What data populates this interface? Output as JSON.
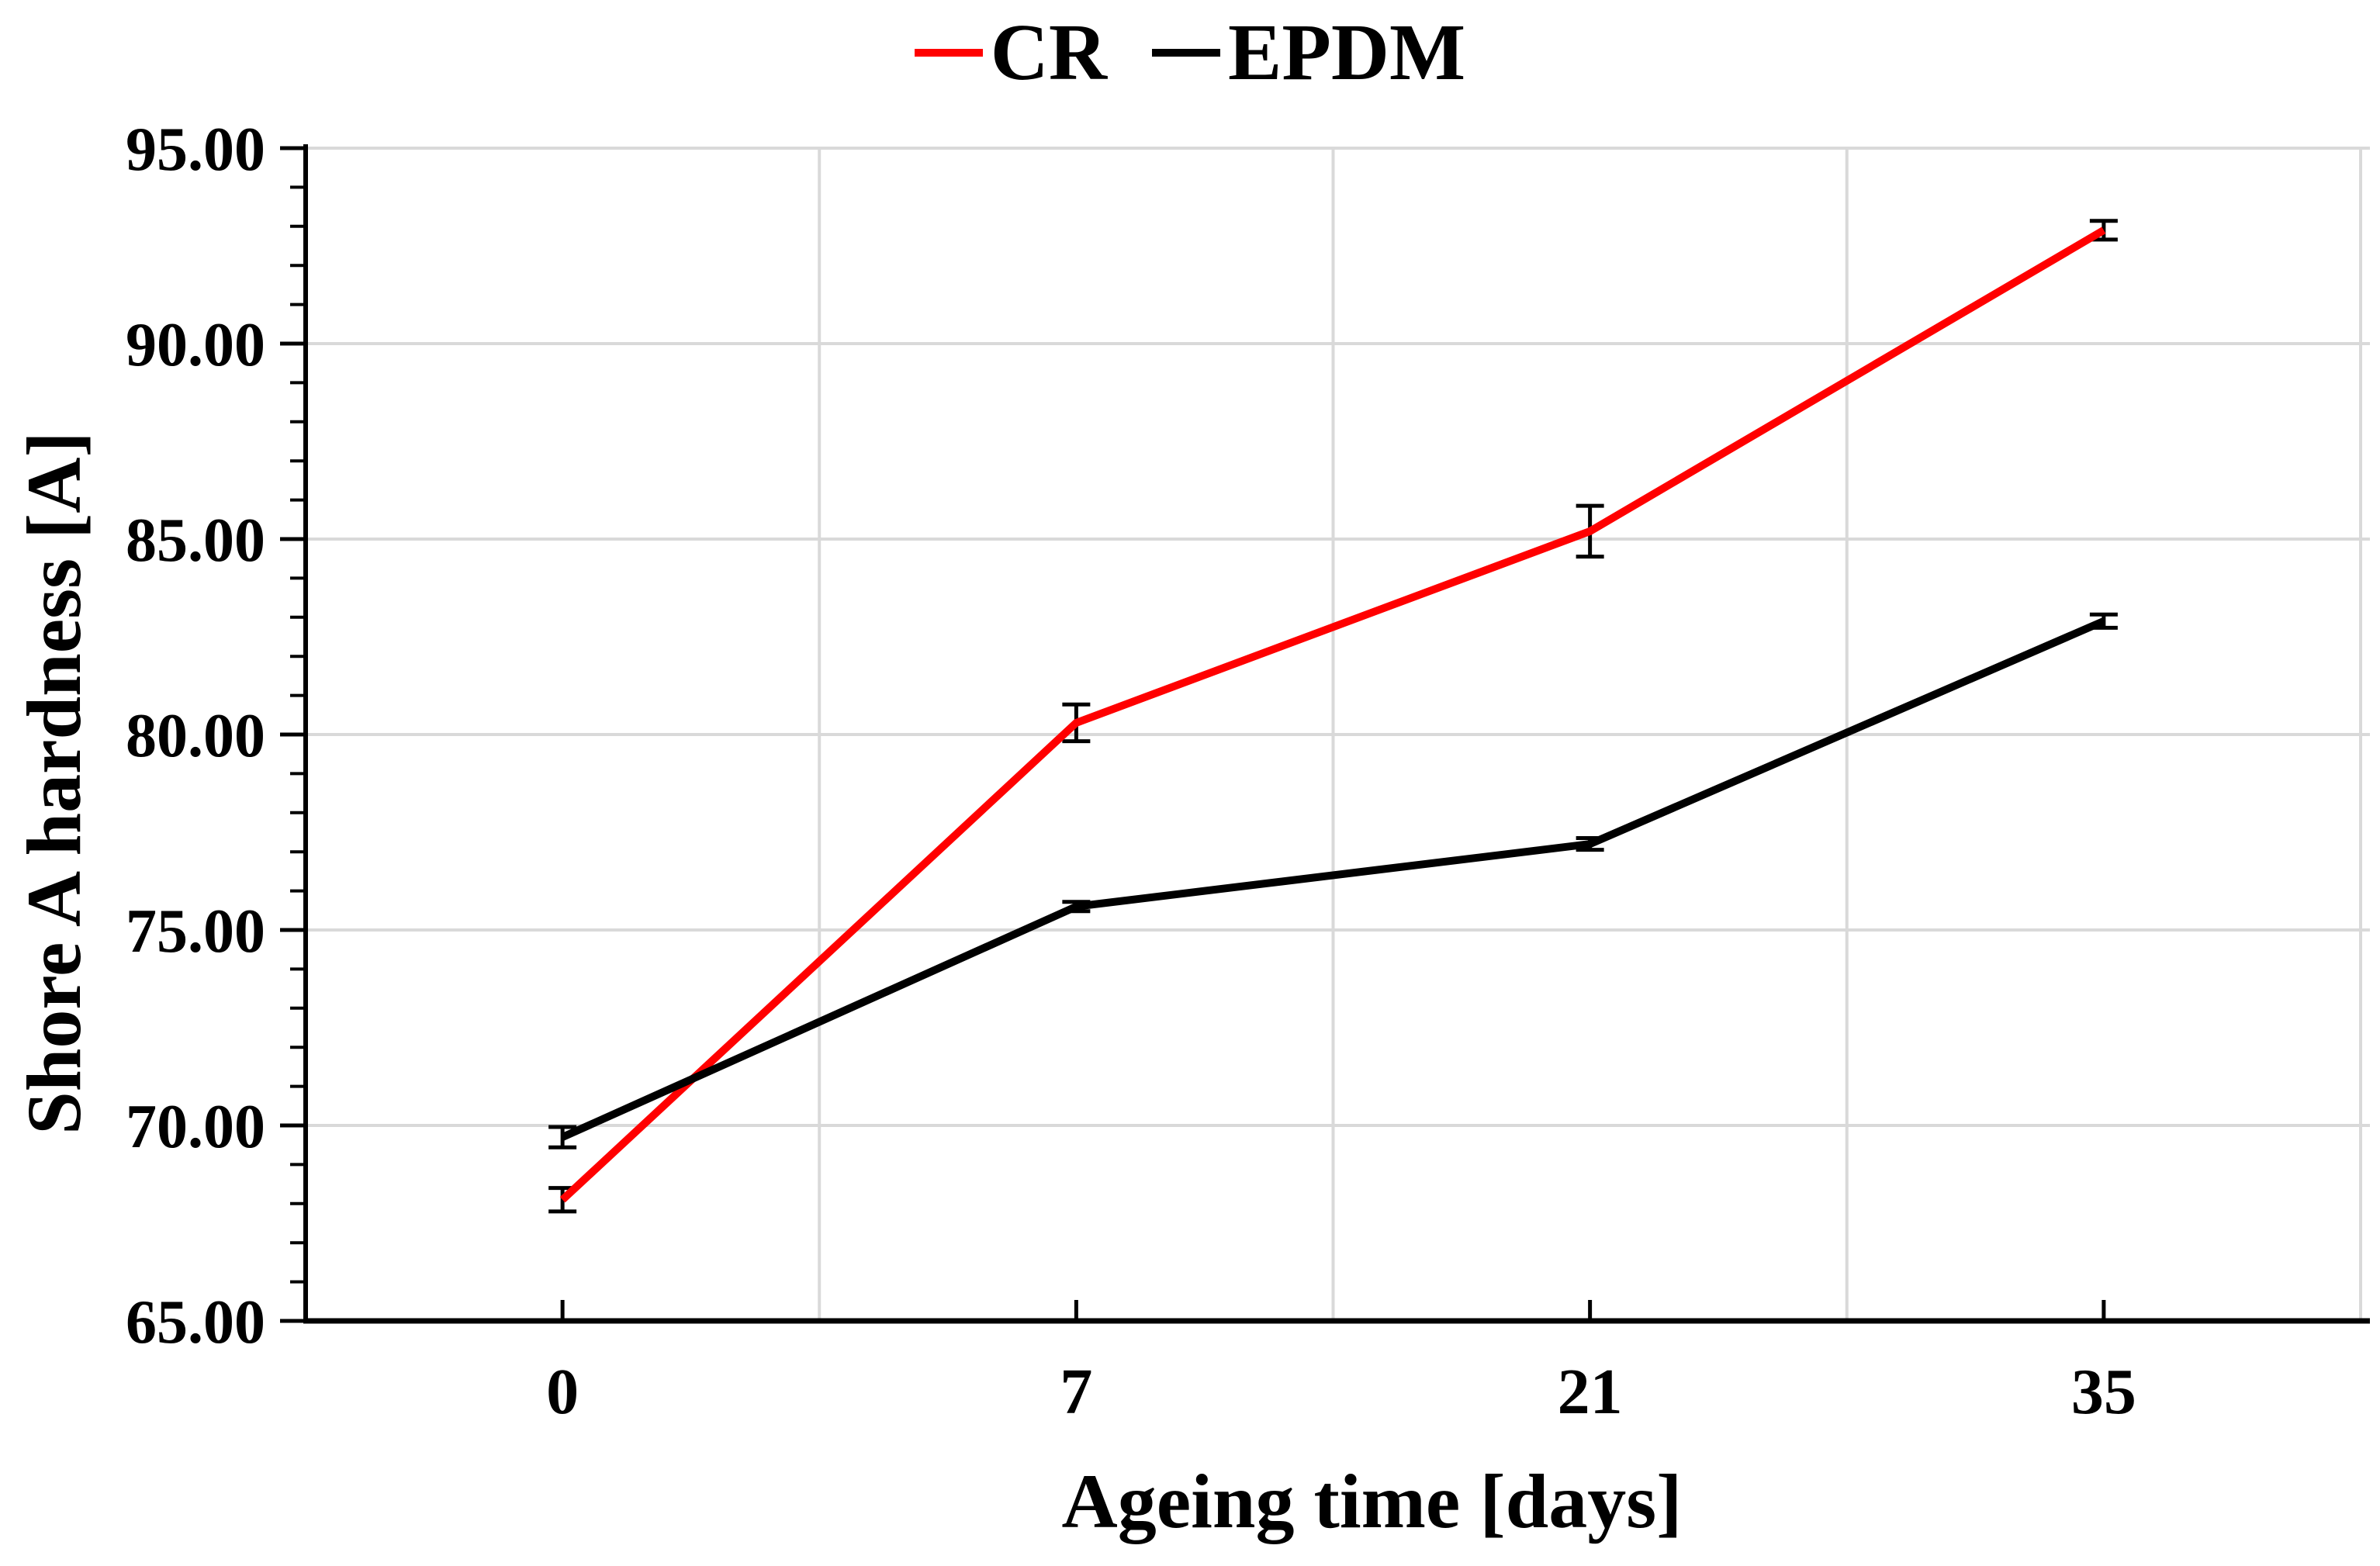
{
  "figure": {
    "background": "#FFFFFF"
  },
  "legend": {
    "items": [
      {
        "label": "CR",
        "color": "#FF0000"
      },
      {
        "label": "EPDM",
        "color": "#000000"
      }
    ]
  },
  "chart_data": {
    "type": "line",
    "title": "",
    "xlabel": "Ageing time [days]",
    "ylabel": "Shore A hardness [A]",
    "categories": [
      "0",
      "7",
      "21",
      "35"
    ],
    "series": [
      {
        "name": "CR",
        "color": "#FF0000",
        "values": [
          68.1,
          80.3,
          85.2,
          92.9
        ],
        "error": [
          0.3,
          0.47,
          0.65,
          0.24
        ]
      },
      {
        "name": "EPDM",
        "color": "#000000",
        "values": [
          69.7,
          75.6,
          77.2,
          82.9
        ],
        "error": [
          0.26,
          0.12,
          0.15,
          0.17
        ]
      }
    ],
    "y_axis": {
      "min": 65,
      "max": 95,
      "major_step": 5,
      "minor_step": 1,
      "tick_labels": [
        "65.00",
        "70.00",
        "75.00",
        "80.00",
        "85.00",
        "90.00",
        "95.00"
      ]
    },
    "x_axis": {
      "ticks_at_category_centers": true
    },
    "grid": {
      "horizontal": true,
      "vertical": true,
      "color": "#D9D9D9"
    },
    "error_bar_color": "#000000",
    "legend_position": "top-center"
  }
}
